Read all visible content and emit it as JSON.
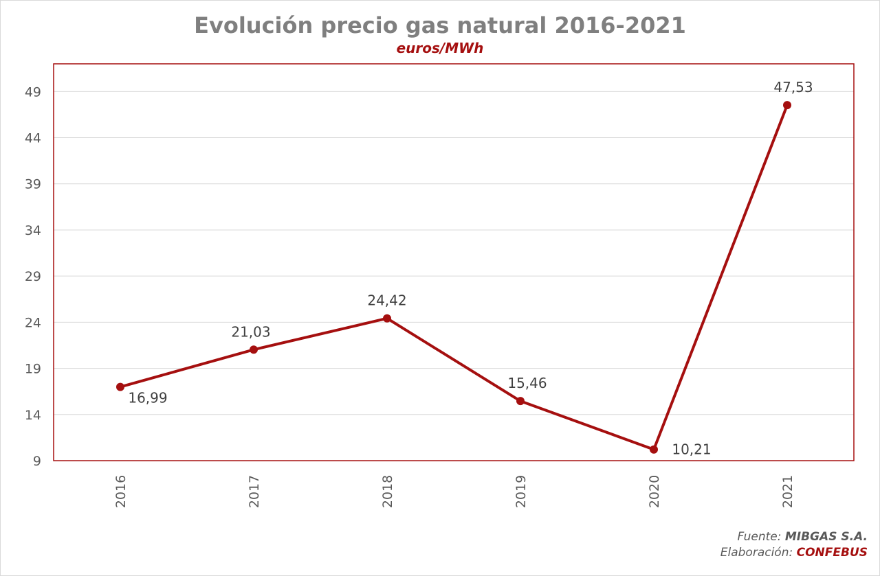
{
  "chart_data": {
    "type": "line",
    "title": "Evolución precio gas natural 2016-2021",
    "subtitle": "euros/MWh",
    "categories": [
      "2016",
      "2017",
      "2018",
      "2019",
      "2020",
      "2021"
    ],
    "series": [
      {
        "values": [
          16.99,
          21.03,
          24.42,
          15.46,
          10.21,
          47.53
        ],
        "data_labels": [
          "16,99",
          "21,03",
          "24,42",
          "15,46",
          "10,21",
          "47,53"
        ],
        "color": "#a50f0f"
      }
    ],
    "y_ticks": [
      9,
      14,
      19,
      24,
      29,
      34,
      39,
      44,
      49
    ],
    "ylim": [
      9,
      52
    ],
    "grid": true,
    "colors": {
      "line": "#a50f0f",
      "plot_border": "#a50f0f",
      "grid": "#d9d9d9",
      "title": "#7f7f7f"
    }
  },
  "footer": {
    "source_label": "Fuente:",
    "source_value": "MIBGAS S.A.",
    "made_label": "Elaboración:",
    "made_value": "CONFEBUS"
  }
}
